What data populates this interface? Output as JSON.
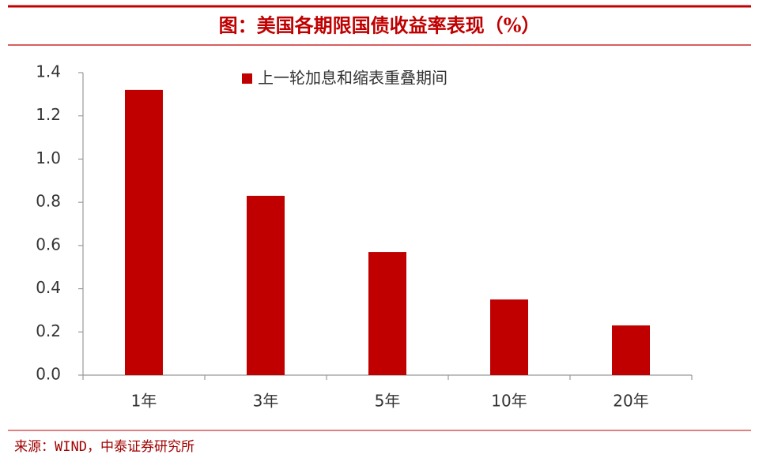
{
  "chart_data": {
    "type": "bar",
    "title": "图：美国各期限国债收益率表现（%）",
    "source": "来源：WIND，中泰证券研究所",
    "categories": [
      "1年",
      "3年",
      "5年",
      "10年",
      "20年"
    ],
    "series": [
      {
        "name": "上一轮加息和缩表重叠期间",
        "color": "#c00000",
        "values": [
          1.32,
          0.83,
          0.57,
          0.35,
          0.23
        ]
      }
    ],
    "ylim": [
      0,
      1.4
    ],
    "yticks": [
      {
        "value": 0,
        "label": "0.0"
      },
      0.2,
      0.4,
      0.6,
      0.8,
      {
        "value": 1,
        "label": "1.0"
      },
      1.2,
      1.4
    ],
    "grid": false,
    "legend": "top"
  }
}
